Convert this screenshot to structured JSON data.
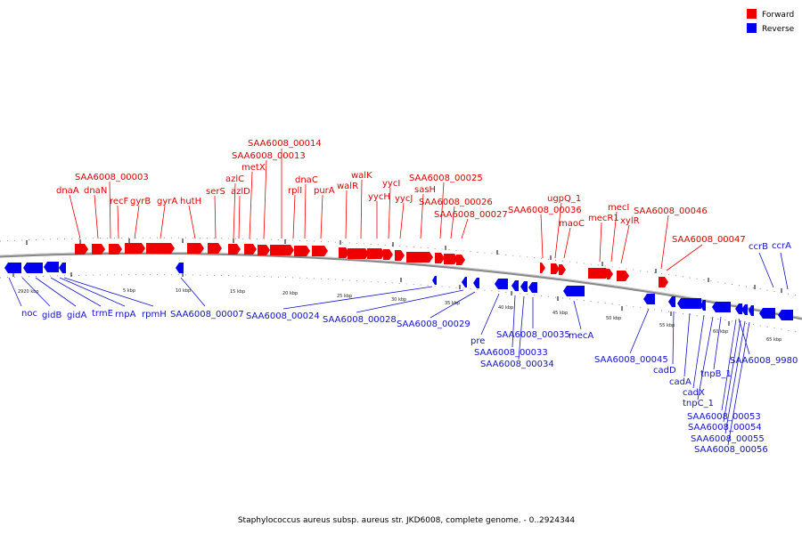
{
  "caption": "Staphylococcus aureus subsp. aureus str. JKD6008, complete genome. - 0..2924344",
  "legend": [
    {
      "label": "Forward",
      "color": "#ee0000"
    },
    {
      "label": "Reverse",
      "color": "#0000ee"
    }
  ],
  "colors": {
    "forward": "#ee0000",
    "reverse": "#0000ee",
    "backbone": "#888888",
    "forward_label": "#dd0000",
    "reverse_label": "#1111cc"
  },
  "ticks": [
    "2920 kbp",
    "5 kbp",
    "10 kbp",
    "15 kbp",
    "20 kbp",
    "25 kbp",
    "30 kbp",
    "35 kbp",
    "40 kbp",
    "45 kbp",
    "50 kbp",
    "55 kbp",
    "60 kbp",
    "65 kbp"
  ],
  "forward_labels": [
    "dnaA",
    "dnaN",
    "SAA6008_00003",
    "recF",
    "gyrB",
    "gyrA",
    "hutH",
    "serS",
    "azlC",
    "azlD",
    "metX",
    "SAA6008_00013",
    "SAA6008_00014",
    "rplI",
    "dnaC",
    "purA",
    "walR",
    "walK",
    "yycH",
    "yycI",
    "yycJ",
    "sasH",
    "SAA6008_00025",
    "SAA6008_00026",
    "SAA6008_00027",
    "SAA6008_00036",
    "ugpQ_1",
    "maoC",
    "mecR1",
    "mecI",
    "xylR",
    "SAA6008_00046",
    "SAA6008_00047"
  ],
  "reverse_labels": [
    "noc",
    "gidB",
    "gidA",
    "trmE",
    "rnpA",
    "rpmH",
    "SAA6008_00007",
    "SAA6008_00024",
    "SAA6008_00028",
    "SAA6008_00029",
    "pre",
    "SAA6008_00035",
    "SAA6008_00033",
    "SAA6008_00034",
    "mecA",
    "SAA6008_00045",
    "cadD",
    "cadA",
    "cadX",
    "tnpC_1",
    "tnpB_1",
    "SAA6008_9980",
    "SAA6008_00053",
    "SAA6008_00054",
    "SAA6008_00055",
    "SAA6008_00056",
    "ccrB",
    "ccrA"
  ]
}
